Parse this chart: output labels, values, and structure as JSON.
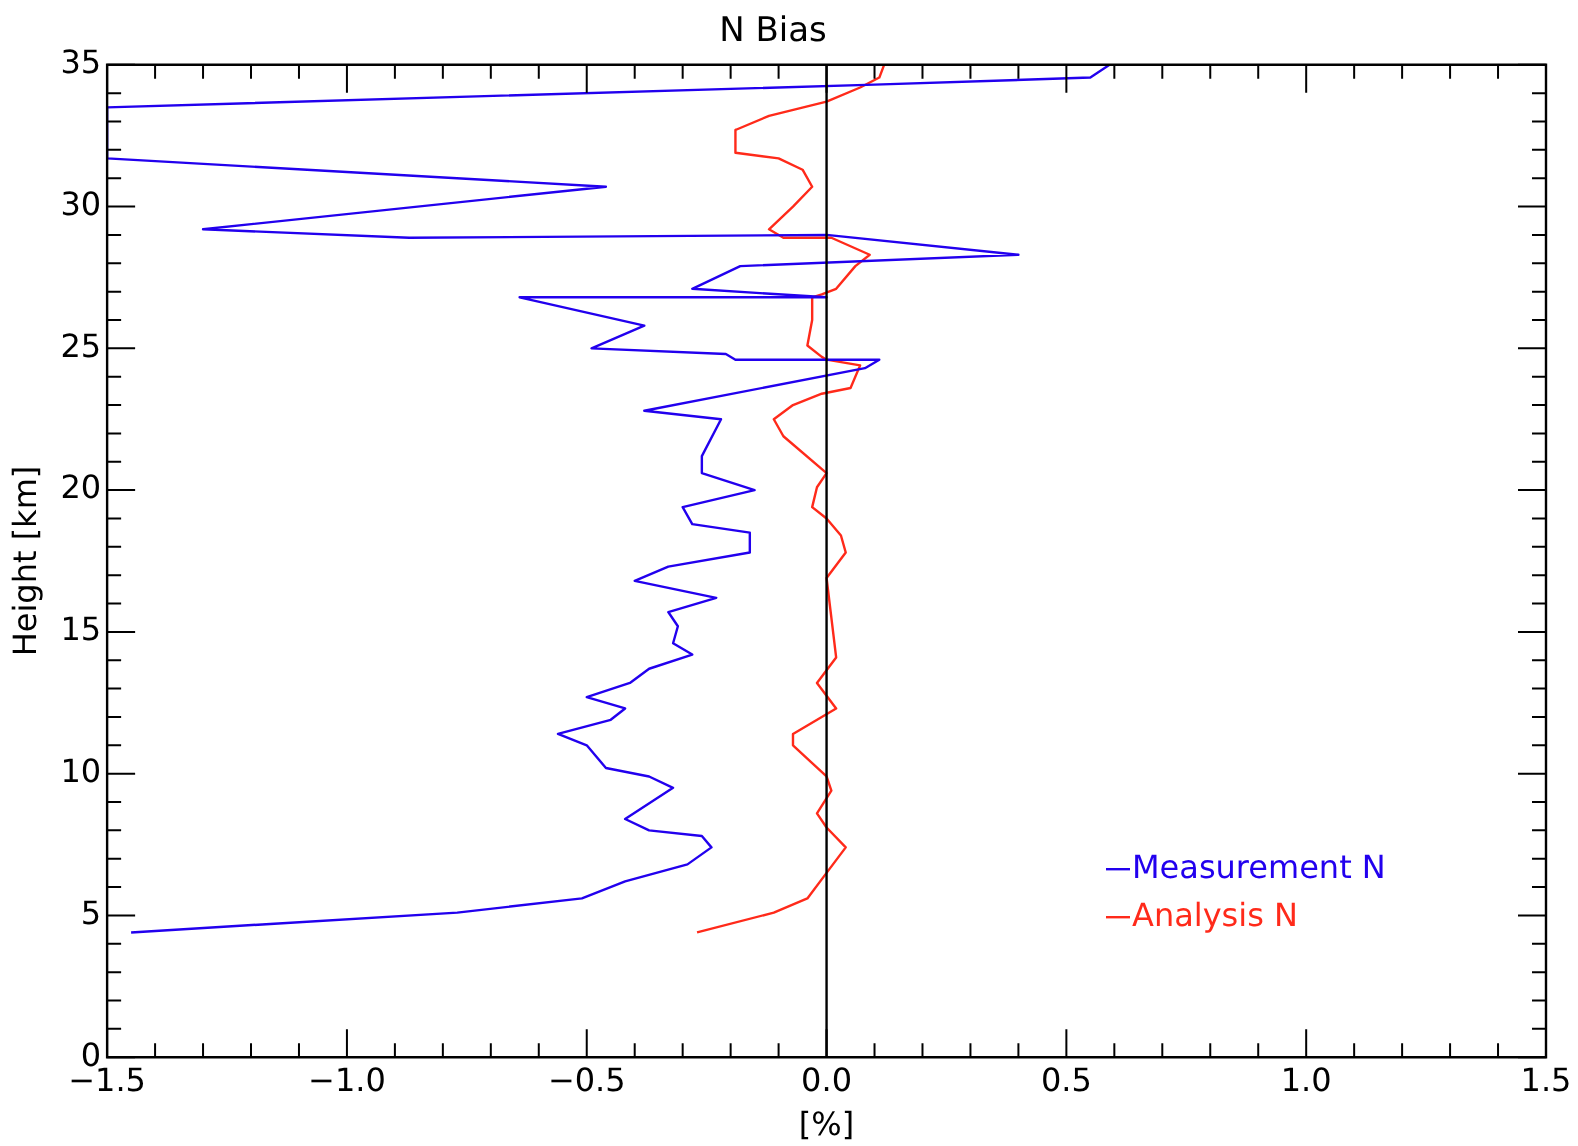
{
  "chart_data": {
    "type": "line",
    "title": "N Bias",
    "xlabel": "[%]",
    "ylabel": "Height [km]",
    "xlim": [
      -1.5,
      1.5
    ],
    "ylim": [
      0,
      35
    ],
    "xticks": [
      {
        "value": -1.5,
        "label": "−1.5"
      },
      {
        "value": -1,
        "label": "−1.0"
      },
      {
        "value": -0.5,
        "label": "−0.5"
      },
      {
        "value": 0,
        "label": "0.0"
      },
      {
        "value": 0.5,
        "label": "0.5"
      },
      {
        "value": 1,
        "label": "1.0"
      },
      {
        "value": 1.5,
        "label": "1.5"
      }
    ],
    "yticks": [
      0,
      5,
      10,
      15,
      20,
      25,
      30,
      35
    ],
    "grid": false,
    "legend": "bottom right",
    "marker": "none",
    "line_style": "solid",
    "ref_lines": [
      {
        "axis": "x",
        "value": 0,
        "color": "#000000"
      }
    ],
    "series": [
      {
        "name": "Measurement N",
        "color": "#2200ee",
        "x": [
          0.59,
          0.55,
          0.1,
          -1.5,
          -1.5,
          -0.46,
          -1.3,
          -0.87,
          0,
          0.4,
          -0.18,
          -0.28,
          0,
          -0.64,
          -0.38,
          -0.49,
          -0.21,
          -0.19,
          0.11,
          0.08,
          -0.38,
          -0.22,
          -0.26,
          -0.26,
          -0.15,
          -0.3,
          -0.28,
          -0.16,
          -0.16,
          -0.33,
          -0.4,
          -0.23,
          -0.33,
          -0.31,
          -0.32,
          -0.28,
          -0.37,
          -0.41,
          -0.5,
          -0.42,
          -0.45,
          -0.56,
          -0.5,
          -0.46,
          -0.37,
          -0.32,
          -0.42,
          -0.37,
          -0.26,
          -0.24,
          -0.29,
          -0.42,
          -0.51,
          -0.77,
          -1.16,
          -1.45
        ],
        "values": [
          35,
          34.55,
          34.3,
          33.5,
          31.7,
          30.7,
          29.2,
          28.9,
          29,
          28.3,
          27.9,
          27.1,
          26.8,
          26.8,
          25.8,
          25,
          24.8,
          24.6,
          24.6,
          24.3,
          22.8,
          22.5,
          21.2,
          20.6,
          20,
          19.4,
          18.8,
          18.5,
          17.8,
          17.3,
          16.8,
          16.2,
          15.7,
          15.2,
          14.6,
          14.2,
          13.7,
          13.2,
          12.7,
          12.3,
          11.9,
          11.4,
          11,
          10.2,
          9.9,
          9.5,
          8.4,
          8,
          7.8,
          7.4,
          6.8,
          6.2,
          5.6,
          5.1,
          4.7,
          4.4
        ]
      },
      {
        "name": "Analysis N",
        "color": "#ff2a1a",
        "x": [
          0.12,
          0.11,
          0.07,
          0,
          -0.12,
          -0.19,
          -0.19,
          -0.1,
          -0.05,
          -0.03,
          -0.07,
          -0.12,
          -0.09,
          0.01,
          0.09,
          0.06,
          0.02,
          -0.01,
          -0.03,
          -0.03,
          -0.04,
          -0.01,
          0,
          0.07,
          0.05,
          -0.01,
          -0.07,
          -0.11,
          -0.09,
          0,
          -0.02,
          -0.03,
          0,
          0.03,
          0.04,
          0,
          0.01,
          0.02,
          -0.02,
          0.02,
          -0.07,
          -0.07,
          0,
          0.01,
          -0.02,
          0,
          0.04,
          0,
          -0.04,
          -0.11,
          -0.27
        ],
        "values": [
          35,
          34.55,
          34.2,
          33.7,
          33.2,
          32.7,
          31.9,
          31.7,
          31.3,
          30.7,
          30,
          29.2,
          28.9,
          28.9,
          28.3,
          27.9,
          27.1,
          26.9,
          26.8,
          26,
          25.1,
          24.7,
          24.6,
          24.4,
          23.6,
          23.4,
          23,
          22.5,
          21.9,
          20.6,
          20.1,
          19.4,
          19,
          18.4,
          17.8,
          16.9,
          15.5,
          14.1,
          13.2,
          12.3,
          11.4,
          11,
          9.9,
          9.4,
          8.6,
          8.1,
          7.4,
          6.5,
          5.6,
          5.1,
          4.4
        ]
      }
    ]
  }
}
